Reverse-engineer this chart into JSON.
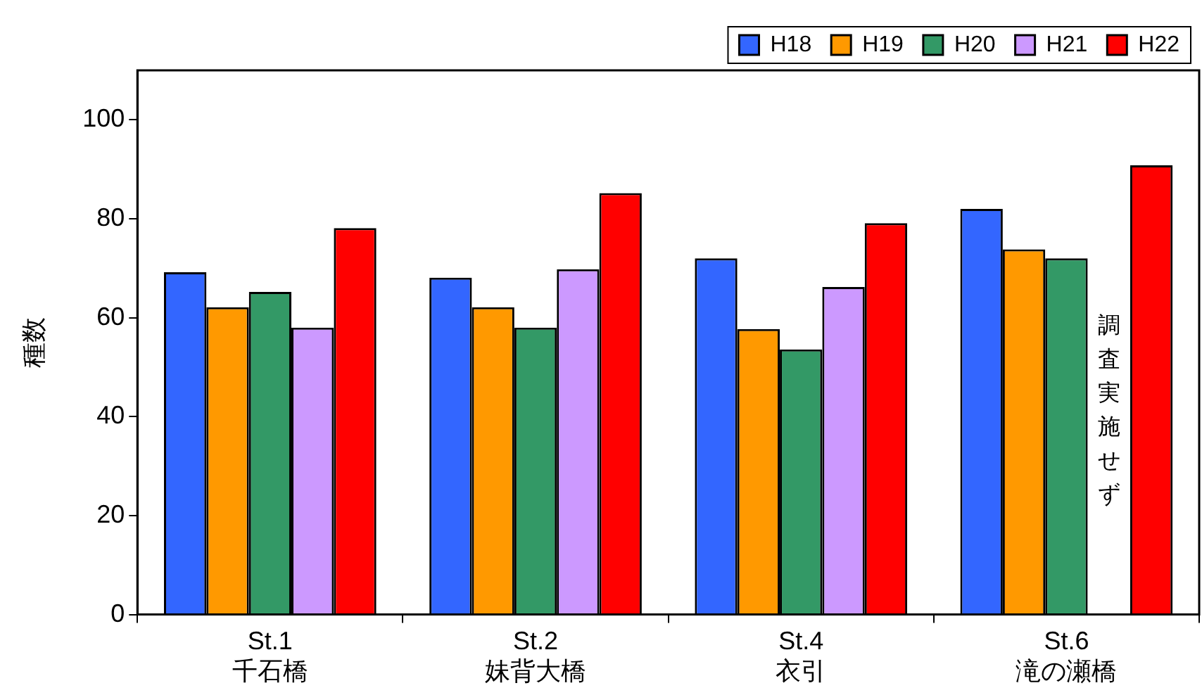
{
  "chart_data": {
    "type": "bar",
    "ylabel": "種数",
    "categories": [
      "St.1\n千石橋",
      "St.2\n妹背大橋",
      "St.4\n衣引",
      "St.6\n滝の瀬橋"
    ],
    "series": [
      {
        "name": "H18",
        "color": "#3366ff",
        "values": [
          69.2,
          68.1,
          72.0,
          82.0
        ]
      },
      {
        "name": "H19",
        "color": "#ff9900",
        "values": [
          62.1,
          62.1,
          57.7,
          73.8
        ]
      },
      {
        "name": "H20",
        "color": "#339966",
        "values": [
          65.2,
          58.0,
          53.6,
          72.0
        ]
      },
      {
        "name": "H21",
        "color": "#cc99ff",
        "values": [
          58.0,
          69.8,
          66.2,
          null
        ]
      },
      {
        "name": "H22",
        "color": "#ff0000",
        "values": [
          78.1,
          85.2,
          79.1,
          90.8
        ]
      }
    ],
    "ylim": [
      0,
      110
    ],
    "yticks": [
      0,
      20,
      40,
      60,
      80,
      100
    ],
    "grid": false,
    "legend": "top right",
    "annotations": [
      "調査実施せず"
    ]
  }
}
